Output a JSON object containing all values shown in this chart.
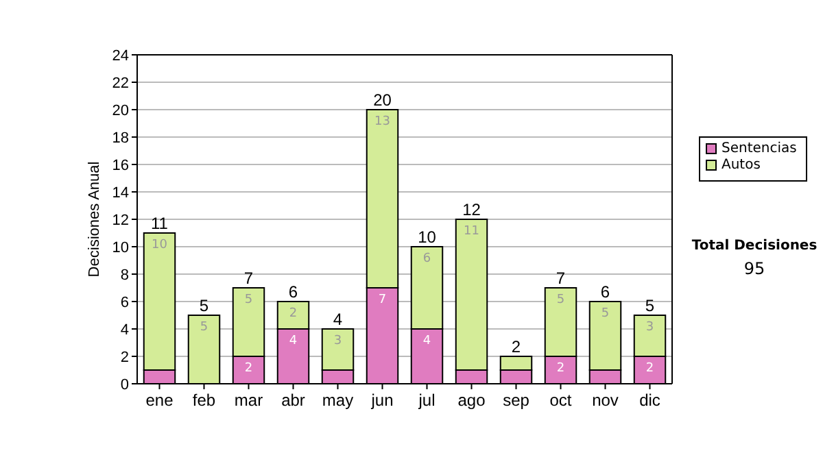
{
  "chart_data": {
    "type": "bar",
    "stacked": true,
    "ylabel": "Decisiones Anual",
    "categories": [
      "ene",
      "feb",
      "mar",
      "abr",
      "may",
      "jun",
      "jul",
      "ago",
      "sep",
      "oct",
      "nov",
      "dic"
    ],
    "series": [
      {
        "name": "Sentencias",
        "color": "#e07cc0",
        "values": [
          1,
          0,
          2,
          4,
          1,
          7,
          4,
          1,
          1,
          2,
          1,
          2
        ],
        "value_labels": [
          null,
          null,
          "2",
          "4",
          null,
          "7",
          "4",
          null,
          null,
          "2",
          null,
          "2"
        ]
      },
      {
        "name": "Autos",
        "color": "#d4ec98",
        "values": [
          10,
          5,
          5,
          2,
          3,
          13,
          6,
          11,
          1,
          5,
          5,
          3
        ],
        "value_labels": [
          "10",
          "5",
          "5",
          "2",
          "3",
          "13",
          "6",
          "11",
          null,
          "5",
          "5",
          "3"
        ]
      }
    ],
    "totals": [
      "11",
      "5",
      "7",
      "6",
      "4",
      "20",
      "10",
      "12",
      "2",
      "7",
      "6",
      "5"
    ],
    "ylim": [
      0,
      24
    ],
    "yticks": [
      0,
      2,
      4,
      6,
      8,
      10,
      12,
      14,
      16,
      18,
      20,
      22,
      24
    ],
    "grid": "y",
    "legend": "right",
    "annotations": [
      "Total Decisiones",
      "95"
    ]
  }
}
